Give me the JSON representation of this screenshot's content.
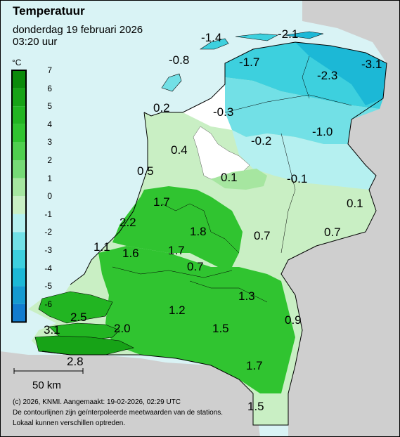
{
  "header": {
    "title": "Temperatuur",
    "date": "donderdag 19 februari 2026",
    "time": "03:20 uur"
  },
  "legend": {
    "unit": "°C",
    "labels": [
      "7",
      "6",
      "5",
      "4",
      "3",
      "2",
      "1",
      "0",
      "-1",
      "-2",
      "-3",
      "-4",
      "-5",
      "-6"
    ],
    "colors": [
      "#0b8a0b",
      "#17a317",
      "#22b522",
      "#30c430",
      "#4fcf4f",
      "#76da76",
      "#a6e6a0",
      "#c9efc4",
      "#b5f0f0",
      "#72e0e6",
      "#3dd0de",
      "#1cb8d6",
      "#159ad0",
      "#127ccf"
    ]
  },
  "values": {
    "v1": "-1.4",
    "v2": "-2.1",
    "v3": "-0.8",
    "v4": "-1.7",
    "v5": "-2.3",
    "v6": "-3.1",
    "v7": "0.2",
    "v8": "-0.3",
    "v9": "-1.0",
    "v10": "0.4",
    "v11": "-0.2",
    "v12": "0.5",
    "v13": "0.1",
    "v14": "-0.1",
    "v15": "0.1",
    "v16": "1.7",
    "v17": "2.2",
    "v18": "1.8",
    "v19": "0.7",
    "v20": "0.7",
    "v21": "1.1",
    "v22": "1.6",
    "v23": "1.7",
    "v24": "0.7",
    "v25": "1.3",
    "v26": "1.2",
    "v27": "2.5",
    "v28": "0.9",
    "v29": "3.1",
    "v30": "2.0",
    "v31": "1.5",
    "v32": "2.8",
    "v33": "1.7",
    "v34": "1.5"
  },
  "scale": {
    "label": "50 km"
  },
  "footer": {
    "line1": "(c) 2026, KNMI. Aangemaakt: 19-02-2026, 02:29 UTC",
    "line2": "De contourlijnen zijn geïnterpoleerde meetwaarden van de stations.",
    "line3": "Lokaal kunnen verschillen optreden."
  },
  "colors": {
    "sea": "#d9f3f5",
    "land_outside": "#cfcfcf",
    "border": "#000000"
  }
}
